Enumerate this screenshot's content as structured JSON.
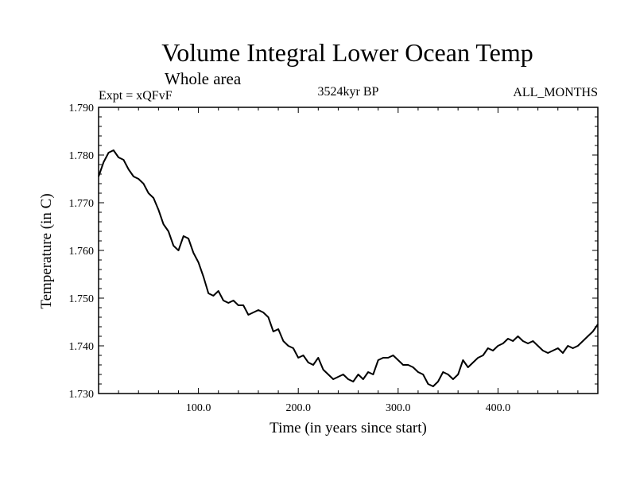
{
  "chart_data": {
    "type": "line",
    "title": "Volume Integral Lower Ocean Temp",
    "subtitle": "Whole area",
    "header_left": "Expt = xQFvF",
    "header_center": "3524kyr BP",
    "header_right": "ALL_MONTHS",
    "xlabel": "Time (in years since start)",
    "ylabel": "Temperature (in C)",
    "xlim": [
      0,
      500
    ],
    "ylim": [
      1.73,
      1.79
    ],
    "x_ticks": [
      100,
      200,
      300,
      400
    ],
    "x_tick_labels": [
      "100.0",
      "200.0",
      "300.0",
      "400.0"
    ],
    "y_ticks": [
      1.73,
      1.74,
      1.75,
      1.76,
      1.77,
      1.78,
      1.79
    ],
    "y_tick_labels": [
      "1.730",
      "1.740",
      "1.750",
      "1.760",
      "1.770",
      "1.780",
      "1.790"
    ],
    "grid": false,
    "series": [
      {
        "name": "Temperature",
        "x": [
          0,
          5,
          10,
          15,
          20,
          25,
          30,
          35,
          40,
          45,
          50,
          55,
          60,
          65,
          70,
          75,
          80,
          85,
          90,
          95,
          100,
          105,
          110,
          115,
          120,
          125,
          130,
          135,
          140,
          145,
          150,
          155,
          160,
          165,
          170,
          175,
          180,
          185,
          190,
          195,
          200,
          205,
          210,
          215,
          220,
          225,
          230,
          235,
          240,
          245,
          250,
          255,
          260,
          265,
          270,
          275,
          280,
          285,
          290,
          295,
          300,
          305,
          310,
          315,
          320,
          325,
          330,
          335,
          340,
          345,
          350,
          355,
          360,
          365,
          370,
          375,
          380,
          385,
          390,
          395,
          400,
          405,
          410,
          415,
          420,
          425,
          430,
          435,
          440,
          445,
          450,
          455,
          460,
          465,
          470,
          475,
          480,
          485,
          490,
          495,
          500
        ],
        "values": [
          1.7755,
          1.7785,
          1.7805,
          1.781,
          1.7795,
          1.779,
          1.777,
          1.7755,
          1.775,
          1.774,
          1.772,
          1.771,
          1.7685,
          1.7655,
          1.764,
          1.761,
          1.76,
          1.763,
          1.7625,
          1.7595,
          1.7575,
          1.7545,
          1.751,
          1.7505,
          1.7515,
          1.7495,
          1.749,
          1.7495,
          1.7485,
          1.7485,
          1.7465,
          1.747,
          1.7475,
          1.747,
          1.746,
          1.743,
          1.7435,
          1.741,
          1.74,
          1.7395,
          1.7375,
          1.738,
          1.7365,
          1.736,
          1.7375,
          1.735,
          1.734,
          1.733,
          1.7335,
          1.734,
          1.733,
          1.7325,
          1.734,
          1.733,
          1.7345,
          1.734,
          1.737,
          1.7375,
          1.7375,
          1.738,
          1.737,
          1.736,
          1.736,
          1.7355,
          1.7345,
          1.734,
          1.732,
          1.7315,
          1.7325,
          1.7345,
          1.734,
          1.733,
          1.734,
          1.737,
          1.7355,
          1.7365,
          1.7375,
          1.738,
          1.7395,
          1.739,
          1.74,
          1.7405,
          1.7415,
          1.741,
          1.742,
          1.741,
          1.7405,
          1.741,
          1.74,
          1.739,
          1.7385,
          1.739,
          1.7395,
          1.7385,
          1.74,
          1.7395,
          1.74,
          1.741,
          1.742,
          1.743,
          1.7445
        ]
      }
    ]
  }
}
